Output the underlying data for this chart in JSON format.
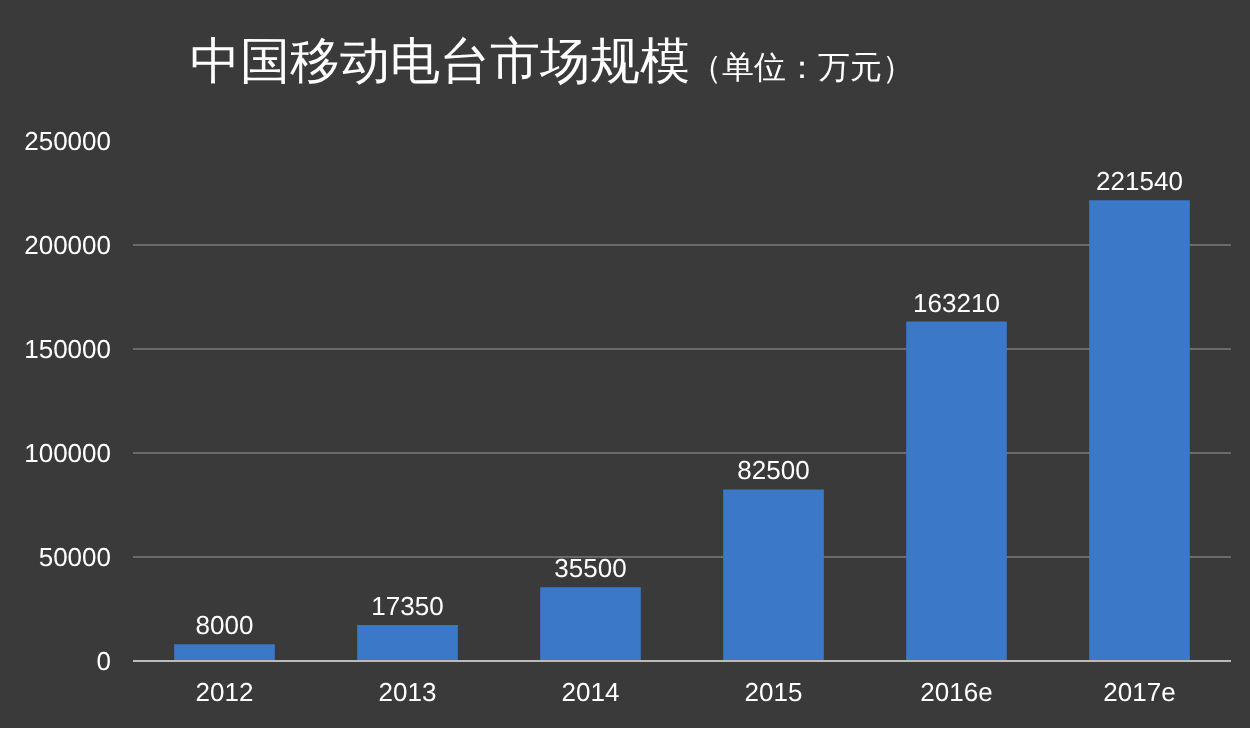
{
  "chart_data": {
    "type": "bar",
    "title": "中国移动电台市场规模",
    "subtitle": "（单位：万元）",
    "categories": [
      "2012",
      "2013",
      "2014",
      "2015",
      "2016e",
      "2017e"
    ],
    "values": [
      8000,
      17350,
      35500,
      82500,
      163210,
      221540
    ],
    "color": "#3b78c8",
    "ylim": [
      0,
      250000
    ],
    "yticks": [
      0,
      50000,
      100000,
      150000,
      200000,
      250000
    ],
    "grid": "y",
    "data_labels": true
  }
}
